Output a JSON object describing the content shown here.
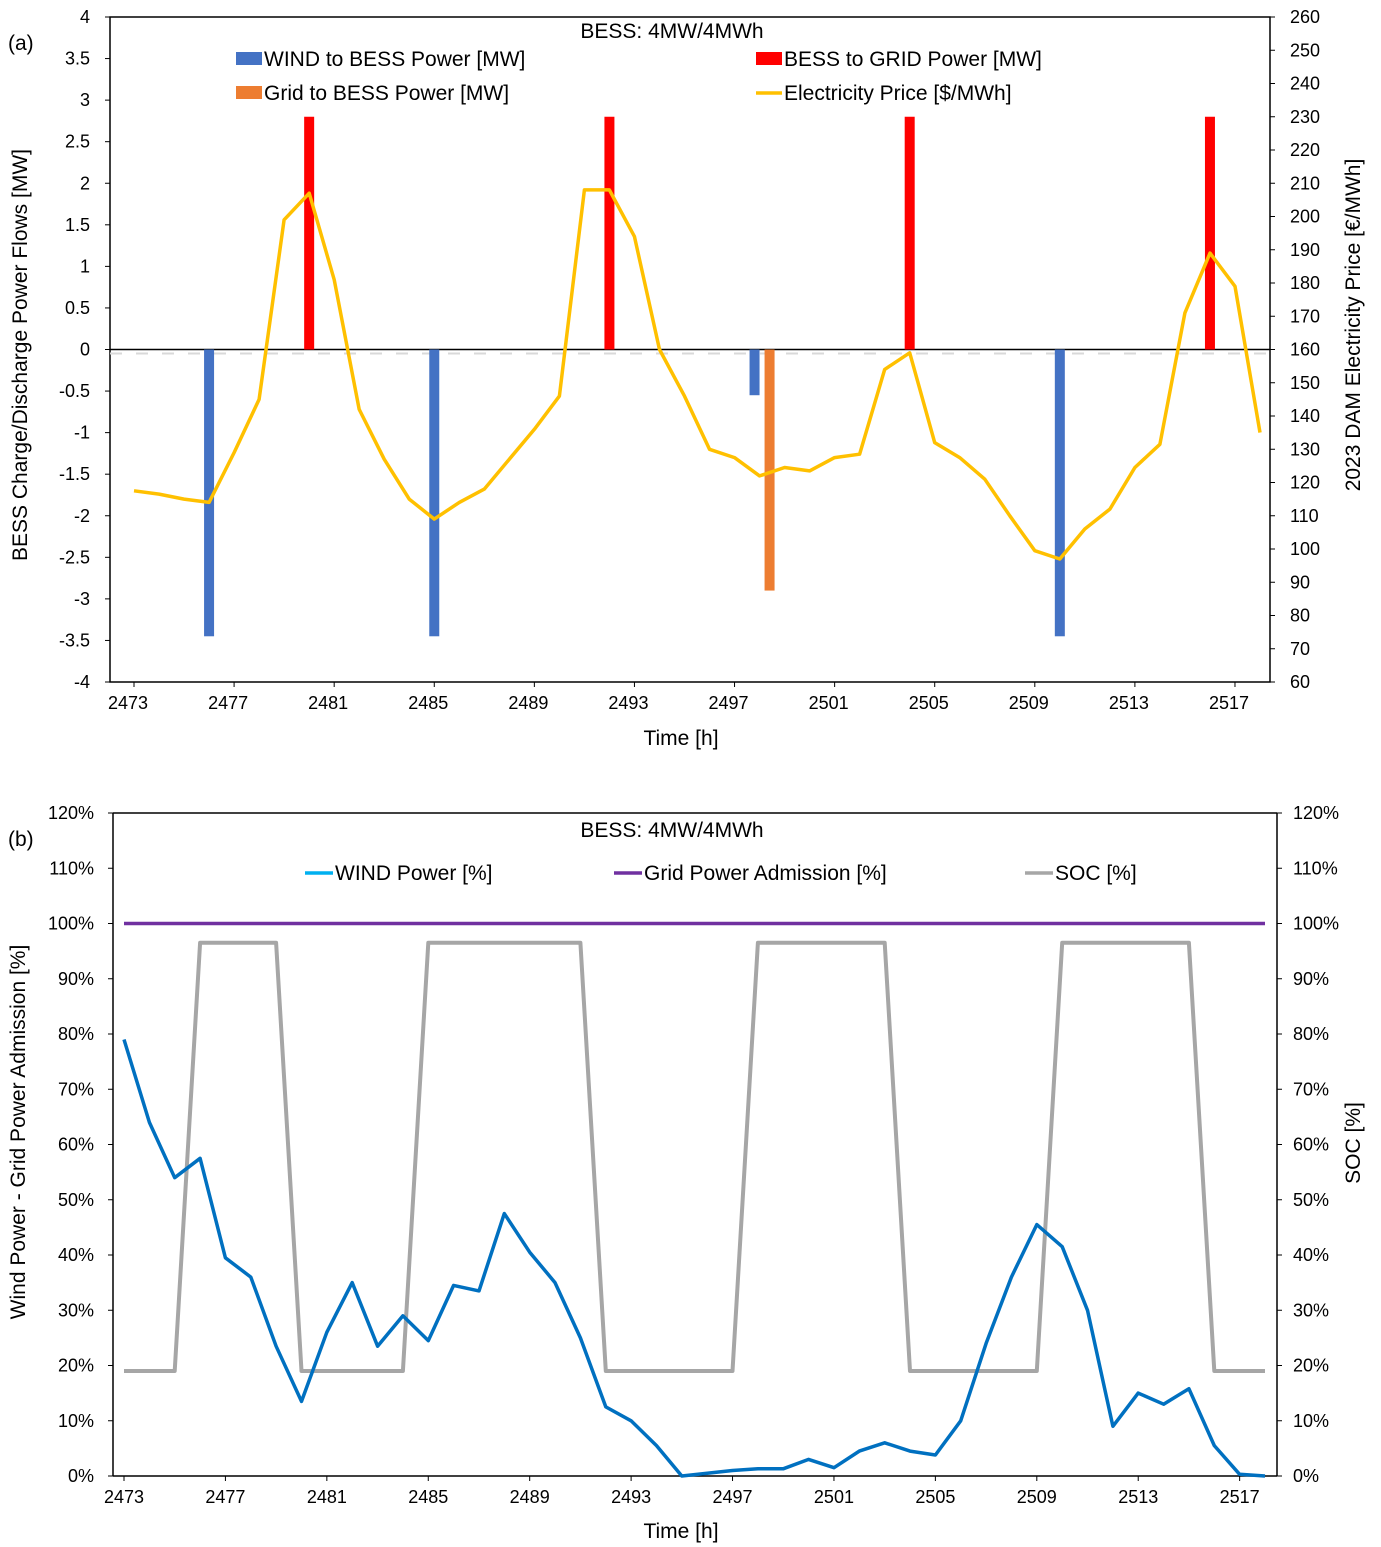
{
  "charts": [
    {
      "panel_label": "(a)",
      "title": "BESS: 4MW/4MWh",
      "xlabel": "Time [h]",
      "ylabel_left": "BESS Charge/Discharge Power Flows [MW]",
      "ylabel_right": "2023 DAM Electricity Price [€/MWh]",
      "x_ticks": [
        "2473",
        "2477",
        "2481",
        "2485",
        "2489",
        "2493",
        "2497",
        "2501",
        "2505",
        "2509",
        "2513",
        "2517"
      ],
      "y_left_ticks": [
        "4",
        "3.5",
        "3",
        "2.5",
        "2",
        "1.5",
        "1",
        "0.5",
        "0",
        "-0.5",
        "-1",
        "-1.5",
        "-2",
        "-2.5",
        "-3",
        "-3.5",
        "-4"
      ],
      "y_right_ticks": [
        "260",
        "250",
        "240",
        "230",
        "220",
        "210",
        "200",
        "190",
        "180",
        "170",
        "160",
        "150",
        "140",
        "130",
        "120",
        "110",
        "100",
        "90",
        "80",
        "70",
        "60"
      ],
      "legend": [
        {
          "label": "WIND to BESS Power [MW]",
          "color": "#4472c4"
        },
        {
          "label": "BESS to GRID Power [MW]",
          "color": "#ff0000"
        },
        {
          "label": "Grid to BESS Power [MW]",
          "color": "#ed7d31"
        },
        {
          "label": "Electricity Price [$/MWh]",
          "color": "#ffc000"
        }
      ]
    },
    {
      "panel_label": "(b)",
      "title": "BESS: 4MW/4MWh",
      "xlabel": "Time [h]",
      "ylabel_left": "Wind Power - Grid Power Admission [%]",
      "ylabel_right": "SOC [%]",
      "x_ticks": [
        "2473",
        "2477",
        "2481",
        "2485",
        "2489",
        "2493",
        "2497",
        "2501",
        "2505",
        "2509",
        "2513",
        "2517"
      ],
      "y_ticks": [
        "120%",
        "110%",
        "100%",
        "90%",
        "80%",
        "70%",
        "60%",
        "50%",
        "40%",
        "30%",
        "20%",
        "10%",
        "0%"
      ],
      "legend": [
        {
          "label": "WIND Power [%]",
          "color": "#00b0f0"
        },
        {
          "label": "Grid Power Admission [%]",
          "color": "#7030a0"
        },
        {
          "label": "SOC [%]",
          "color": "#a6a6a6"
        }
      ]
    }
  ],
  "chart_data": [
    {
      "type": "bar",
      "x_range": [
        2473,
        2518
      ],
      "ylim_left": [
        -4,
        4
      ],
      "ylim_right": [
        60,
        260
      ],
      "series": [
        {
          "name": "WIND to BESS Power [MW]",
          "color": "#4472c4",
          "points": [
            [
              2476,
              -3.45
            ],
            [
              2485,
              -3.45
            ],
            [
              2497.8,
              -0.55
            ],
            [
              2510,
              -3.45
            ]
          ]
        },
        {
          "name": "BESS to GRID Power [MW]",
          "color": "#ff0000",
          "points": [
            [
              2480,
              2.8
            ],
            [
              2492,
              2.8
            ],
            [
              2504,
              2.8
            ],
            [
              2516,
              2.8
            ]
          ]
        },
        {
          "name": "Grid to BESS Power [MW]",
          "color": "#ed7d31",
          "points": [
            [
              2498.4,
              -2.9
            ]
          ]
        },
        {
          "name": "Electricity Price [$/MWh]",
          "axis": "right",
          "color": "#ffc000",
          "points": [
            [
              2473,
              117.5
            ],
            [
              2474,
              116.5
            ],
            [
              2475,
              115
            ],
            [
              2476,
              114
            ],
            [
              2477,
              129
            ],
            [
              2478,
              145
            ],
            [
              2479,
              199
            ],
            [
              2480,
              207
            ],
            [
              2481,
              181
            ],
            [
              2482,
              142
            ],
            [
              2483,
              127
            ],
            [
              2484,
              115
            ],
            [
              2485,
              109
            ],
            [
              2486,
              114
            ],
            [
              2487,
              118
            ],
            [
              2488,
              127
            ],
            [
              2489,
              136
            ],
            [
              2490,
              146
            ],
            [
              2491,
              208
            ],
            [
              2492,
              208
            ],
            [
              2493,
              194
            ],
            [
              2494,
              160
            ],
            [
              2495,
              146
            ],
            [
              2496,
              130
            ],
            [
              2497,
              127.5
            ],
            [
              2498,
              122
            ],
            [
              2499,
              124.5
            ],
            [
              2500,
              123.5
            ],
            [
              2501,
              127.5
            ],
            [
              2502,
              128.5
            ],
            [
              2503,
              154
            ],
            [
              2504,
              159
            ],
            [
              2505,
              132
            ],
            [
              2506,
              127.5
            ],
            [
              2507,
              121
            ],
            [
              2508,
              110
            ],
            [
              2509,
              99.5
            ],
            [
              2510,
              97
            ],
            [
              2511,
              106
            ],
            [
              2512,
              112
            ],
            [
              2513,
              124.5
            ],
            [
              2514,
              131.5
            ],
            [
              2515,
              171
            ],
            [
              2516,
              189
            ],
            [
              2517,
              179
            ],
            [
              2518,
              135
            ]
          ]
        }
      ]
    },
    {
      "type": "line",
      "x_range": [
        2473,
        2518
      ],
      "ylim": [
        0,
        120
      ],
      "series": [
        {
          "name": "WIND Power [%]",
          "color": "#0070c0",
          "points": [
            [
              2473,
              79
            ],
            [
              2474,
              64
            ],
            [
              2475,
              54
            ],
            [
              2476,
              57.5
            ],
            [
              2477,
              39.5
            ],
            [
              2478,
              36
            ],
            [
              2479,
              23.5
            ],
            [
              2480,
              13.5
            ],
            [
              2481,
              26
            ],
            [
              2482,
              35
            ],
            [
              2483,
              23.5
            ],
            [
              2484,
              29
            ],
            [
              2485,
              24.5
            ],
            [
              2486,
              34.5
            ],
            [
              2487,
              33.5
            ],
            [
              2488,
              47.5
            ],
            [
              2489,
              40.5
            ],
            [
              2490,
              35
            ],
            [
              2491,
              25
            ],
            [
              2492,
              12.5
            ],
            [
              2493,
              10
            ],
            [
              2494,
              5.5
            ],
            [
              2495,
              0
            ],
            [
              2496,
              0.5
            ],
            [
              2497,
              1
            ],
            [
              2498,
              1.3
            ],
            [
              2499,
              1.3
            ],
            [
              2500,
              3
            ],
            [
              2501,
              1.5
            ],
            [
              2502,
              4.5
            ],
            [
              2503,
              6
            ],
            [
              2504,
              4.5
            ],
            [
              2505,
              3.8
            ],
            [
              2506,
              10
            ],
            [
              2507,
              24
            ],
            [
              2508,
              36
            ],
            [
              2509,
              45.5
            ],
            [
              2510,
              41.5
            ],
            [
              2511,
              30
            ],
            [
              2512,
              9
            ],
            [
              2513,
              15
            ],
            [
              2514,
              13
            ],
            [
              2515,
              15.8
            ],
            [
              2516,
              5.5
            ],
            [
              2517,
              0.3
            ],
            [
              2518,
              0
            ]
          ]
        },
        {
          "name": "Grid Power Admission [%]",
          "color": "#7030a0",
          "points": [
            [
              2473,
              100
            ],
            [
              2518,
              100
            ]
          ]
        },
        {
          "name": "SOC [%]",
          "color": "#a6a6a6",
          "points": [
            [
              2473,
              19
            ],
            [
              2475,
              19
            ],
            [
              2476,
              96.5
            ],
            [
              2478,
              96.5
            ],
            [
              2479,
              96.5
            ],
            [
              2480,
              19
            ],
            [
              2484,
              19
            ],
            [
              2485,
              96.5
            ],
            [
              2491,
              96.5
            ],
            [
              2492,
              19
            ],
            [
              2497,
              19
            ],
            [
              2498,
              96.5
            ],
            [
              2503,
              96.5
            ],
            [
              2504,
              19
            ],
            [
              2509,
              19
            ],
            [
              2510,
              96.5
            ],
            [
              2515,
              96.5
            ],
            [
              2516,
              19
            ],
            [
              2518,
              19
            ]
          ]
        }
      ]
    }
  ]
}
